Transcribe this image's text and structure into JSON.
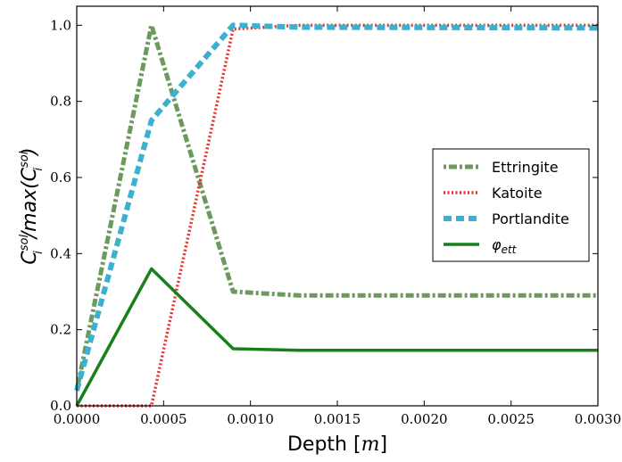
{
  "chart_data": {
    "type": "line",
    "xlabel": "Depth [m]",
    "ylabel": "C_i^sol / max(C_i^sol)",
    "xlim": [
      0,
      0.003
    ],
    "ylim": [
      0,
      1.05
    ],
    "x_ticks": [
      "0.0000",
      "0.0005",
      "0.0010",
      "0.0015",
      "0.0020",
      "0.0025",
      "0.0030"
    ],
    "y_ticks": [
      "0.0",
      "0.2",
      "0.4",
      "0.6",
      "0.8",
      "1.0"
    ],
    "grid": false,
    "legend_position": "center-right",
    "series": [
      {
        "name": "Ettringite",
        "color": "#6b9a5c",
        "style": "dashdot",
        "x": [
          0,
          0.00043,
          0.0009,
          0.00128,
          0.003
        ],
        "y": [
          0.04,
          1.0,
          0.3,
          0.29,
          0.29
        ]
      },
      {
        "name": "Katoite",
        "color": "#e8302a",
        "style": "dotted",
        "x": [
          0,
          0.00043,
          0.0009,
          0.00128,
          0.003
        ],
        "y": [
          0.0,
          0.0,
          0.99,
          1.0,
          1.0
        ]
      },
      {
        "name": "Portlandite",
        "color": "#3bb0d0",
        "style": "dashed",
        "x": [
          0,
          0.00043,
          0.0009,
          0.00128,
          0.003
        ],
        "y": [
          0.04,
          0.75,
          1.0,
          0.995,
          0.993
        ]
      },
      {
        "name": "φ_ett",
        "color": "#17801a",
        "style": "solid",
        "x": [
          0,
          0.00043,
          0.0009,
          0.00128,
          0.003
        ],
        "y": [
          0.0,
          0.36,
          0.15,
          0.146,
          0.146
        ]
      }
    ]
  }
}
